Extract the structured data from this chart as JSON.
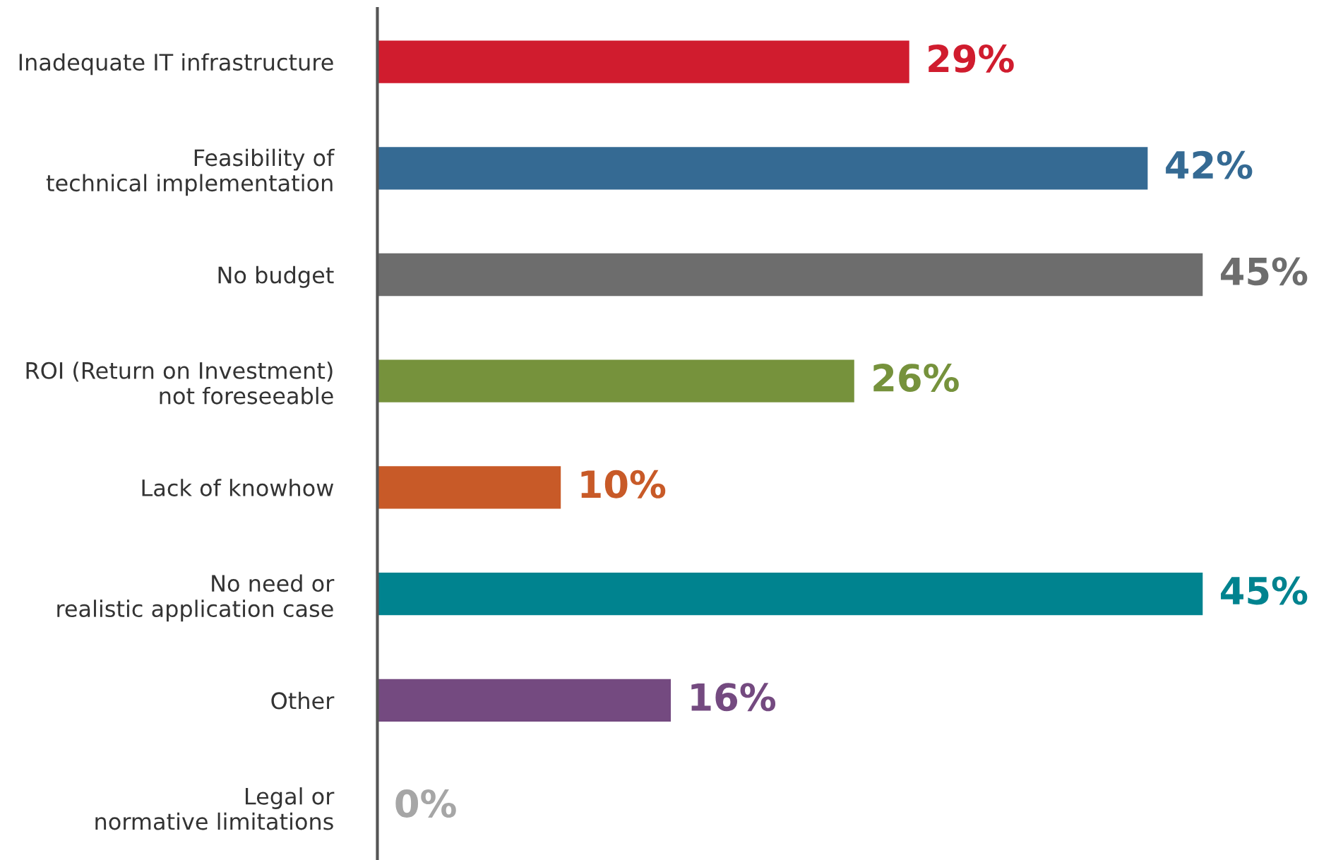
{
  "chart_data": {
    "type": "bar",
    "orientation": "horizontal",
    "categories": [
      "Inadequate IT infrastructure",
      "Feasibility of\ntechnical implementation",
      "No budget",
      "ROI (Return on Investment)\nnot foreseeable",
      "Lack of knowhow",
      "No need or\nrealistic application case",
      "Other",
      "Legal or\nnormative limitations"
    ],
    "values": [
      29,
      42,
      45,
      26,
      10,
      45,
      16,
      0
    ],
    "colors": [
      "#d01c2e",
      "#356a93",
      "#6d6d6d",
      "#76923c",
      "#c85a28",
      "#00838f",
      "#744a80",
      "#a6a6a6"
    ],
    "value_labels": [
      "29%",
      "42%",
      "45%",
      "26%",
      "10%",
      "45%",
      "16%",
      "0%"
    ],
    "tick_labels": "y",
    "grid": false,
    "legend": false
  }
}
